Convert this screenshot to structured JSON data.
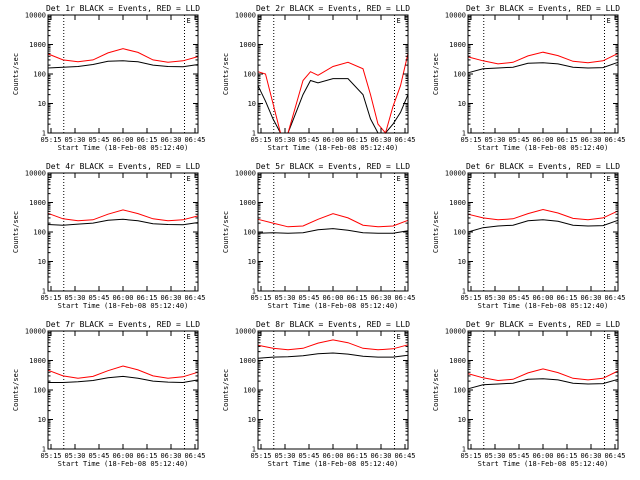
{
  "figure": {
    "x_axis_title": "Start Time (18-Feb-08 05:12:40)",
    "y_axis_title": "Counts/sec",
    "time_ticks": [
      "05:15",
      "05:30",
      "05:45",
      "06:00",
      "06:15",
      "06:30",
      "06:45"
    ],
    "y_ticks": [
      "1",
      "10",
      "100",
      "1000",
      "10000"
    ],
    "marker": "E",
    "colors": {
      "events": "#000000",
      "lld": "#ff0000",
      "axes": "#000000",
      "background": "#ffffff"
    }
  },
  "chart_data": [
    {
      "type": "line",
      "title": "Det 1r BLACK = Events, RED = LLD",
      "xlim": [
        0,
        100
      ],
      "ylim": [
        1,
        10000
      ],
      "yscale": "log",
      "xlabel": "Start Time (18-Feb-08 05:12:40)",
      "ylabel": "Counts/sec",
      "x": [
        0,
        10,
        20,
        30,
        40,
        50,
        60,
        70,
        80,
        90,
        100
      ],
      "series": [
        {
          "name": "Events",
          "color": "#000000",
          "values": [
            160,
            170,
            180,
            210,
            270,
            280,
            260,
            200,
            180,
            175,
            210
          ]
        },
        {
          "name": "LLD",
          "color": "#ff0000",
          "values": [
            480,
            300,
            260,
            300,
            520,
            720,
            540,
            300,
            250,
            280,
            390
          ]
        }
      ]
    },
    {
      "type": "line",
      "title": "Det 2r BLACK = Events, RED = LLD",
      "xlim": [
        0,
        100
      ],
      "ylim": [
        1,
        10000
      ],
      "yscale": "log",
      "xlabel": "Start Time (18-Feb-08 05:12:40)",
      "ylabel": "Counts/sec",
      "x": [
        0,
        5,
        10,
        15,
        20,
        30,
        35,
        40,
        50,
        60,
        70,
        75,
        80,
        85,
        90,
        95,
        100
      ],
      "series": [
        {
          "name": "Events",
          "color": "#000000",
          "values": [
            40,
            12,
            3,
            1,
            1,
            20,
            60,
            50,
            70,
            70,
            20,
            3,
            1,
            1,
            2,
            5,
            20
          ]
        },
        {
          "name": "LLD",
          "color": "#ff0000",
          "values": [
            120,
            100,
            10,
            1,
            1,
            60,
            120,
            90,
            180,
            250,
            150,
            20,
            2,
            1,
            8,
            40,
            500
          ]
        }
      ]
    },
    {
      "type": "line",
      "title": "Det 3r BLACK = Events, RED = LLD",
      "xlim": [
        0,
        100
      ],
      "ylim": [
        1,
        10000
      ],
      "yscale": "log",
      "xlabel": "Start Time (18-Feb-08 05:12:40)",
      "ylabel": "Counts/sec",
      "x": [
        0,
        10,
        20,
        30,
        40,
        50,
        60,
        70,
        80,
        90,
        100
      ],
      "series": [
        {
          "name": "Events",
          "color": "#000000",
          "values": [
            110,
            150,
            160,
            170,
            230,
            240,
            220,
            170,
            160,
            165,
            250
          ]
        },
        {
          "name": "LLD",
          "color": "#ff0000",
          "values": [
            380,
            280,
            220,
            250,
            410,
            550,
            420,
            270,
            240,
            280,
            500
          ]
        }
      ]
    },
    {
      "type": "line",
      "title": "Det 4r BLACK = Events, RED = LLD",
      "xlim": [
        0,
        100
      ],
      "ylim": [
        1,
        10000
      ],
      "yscale": "log",
      "xlabel": "Start Time (18-Feb-08 05:12:40)",
      "ylabel": "Counts/sec",
      "x": [
        0,
        10,
        20,
        30,
        40,
        50,
        60,
        70,
        80,
        90,
        100
      ],
      "series": [
        {
          "name": "Events",
          "color": "#000000",
          "values": [
            180,
            170,
            185,
            200,
            250,
            270,
            240,
            190,
            180,
            175,
            210
          ]
        },
        {
          "name": "LLD",
          "color": "#ff0000",
          "values": [
            430,
            280,
            240,
            260,
            400,
            560,
            420,
            280,
            240,
            260,
            350
          ]
        }
      ]
    },
    {
      "type": "line",
      "title": "Det 5r BLACK = Events, RED = LLD",
      "xlim": [
        0,
        100
      ],
      "ylim": [
        1,
        10000
      ],
      "yscale": "log",
      "xlabel": "Start Time (18-Feb-08 05:12:40)",
      "ylabel": "Counts/sec",
      "x": [
        0,
        10,
        20,
        30,
        40,
        50,
        60,
        70,
        80,
        90,
        100
      ],
      "series": [
        {
          "name": "Events",
          "color": "#000000",
          "values": [
            90,
            95,
            90,
            95,
            120,
            130,
            115,
            95,
            90,
            90,
            110
          ]
        },
        {
          "name": "LLD",
          "color": "#ff0000",
          "values": [
            270,
            200,
            150,
            160,
            270,
            420,
            300,
            170,
            150,
            160,
            250
          ]
        }
      ]
    },
    {
      "type": "line",
      "title": "Det 6r BLACK = Events, RED = LLD",
      "xlim": [
        0,
        100
      ],
      "ylim": [
        1,
        10000
      ],
      "yscale": "log",
      "xlabel": "Start Time (18-Feb-08 05:12:40)",
      "ylabel": "Counts/sec",
      "x": [
        0,
        10,
        20,
        30,
        40,
        50,
        60,
        70,
        80,
        90,
        100
      ],
      "series": [
        {
          "name": "Events",
          "color": "#000000",
          "values": [
            100,
            140,
            160,
            170,
            240,
            260,
            230,
            170,
            160,
            165,
            250
          ]
        },
        {
          "name": "LLD",
          "color": "#ff0000",
          "values": [
            400,
            300,
            260,
            280,
            420,
            580,
            440,
            290,
            260,
            300,
            520
          ]
        }
      ]
    },
    {
      "type": "line",
      "title": "Det 7r BLACK = Events, RED = LLD",
      "xlim": [
        0,
        100
      ],
      "ylim": [
        1,
        10000
      ],
      "yscale": "log",
      "xlabel": "Start Time (18-Feb-08 05:12:40)",
      "ylabel": "Counts/sec",
      "x": [
        0,
        10,
        20,
        30,
        40,
        50,
        60,
        70,
        80,
        90,
        100
      ],
      "series": [
        {
          "name": "Events",
          "color": "#000000",
          "values": [
            180,
            180,
            190,
            210,
            260,
            290,
            250,
            200,
            185,
            180,
            220
          ]
        },
        {
          "name": "LLD",
          "color": "#ff0000",
          "values": [
            470,
            300,
            250,
            290,
            450,
            650,
            480,
            300,
            250,
            280,
            400
          ]
        }
      ]
    },
    {
      "type": "line",
      "title": "Det 8r BLACK = Events, RED = LLD",
      "xlim": [
        0,
        100
      ],
      "ylim": [
        1,
        10000
      ],
      "yscale": "log",
      "xlabel": "Start Time (18-Feb-08 05:12:40)",
      "ylabel": "Counts/sec",
      "x": [
        0,
        10,
        20,
        30,
        40,
        50,
        60,
        70,
        80,
        90,
        100
      ],
      "series": [
        {
          "name": "Events",
          "color": "#000000",
          "values": [
            1200,
            1300,
            1350,
            1450,
            1700,
            1800,
            1650,
            1400,
            1300,
            1300,
            1500
          ]
        },
        {
          "name": "LLD",
          "color": "#ff0000",
          "values": [
            3300,
            2600,
            2300,
            2600,
            3900,
            5000,
            4000,
            2600,
            2300,
            2500,
            3400
          ]
        }
      ]
    },
    {
      "type": "line",
      "title": "Det 9r BLACK = Events, RED = LLD",
      "xlim": [
        0,
        100
      ],
      "ylim": [
        1,
        10000
      ],
      "yscale": "log",
      "xlabel": "Start Time (18-Feb-08 05:12:40)",
      "ylabel": "Counts/sec",
      "x": [
        0,
        10,
        20,
        30,
        40,
        50,
        60,
        70,
        80,
        90,
        100
      ],
      "series": [
        {
          "name": "Events",
          "color": "#000000",
          "values": [
            110,
            150,
            160,
            170,
            230,
            240,
            220,
            170,
            160,
            165,
            230
          ]
        },
        {
          "name": "LLD",
          "color": "#ff0000",
          "values": [
            360,
            260,
            210,
            230,
            380,
            520,
            390,
            250,
            220,
            250,
            440
          ]
        }
      ]
    }
  ]
}
